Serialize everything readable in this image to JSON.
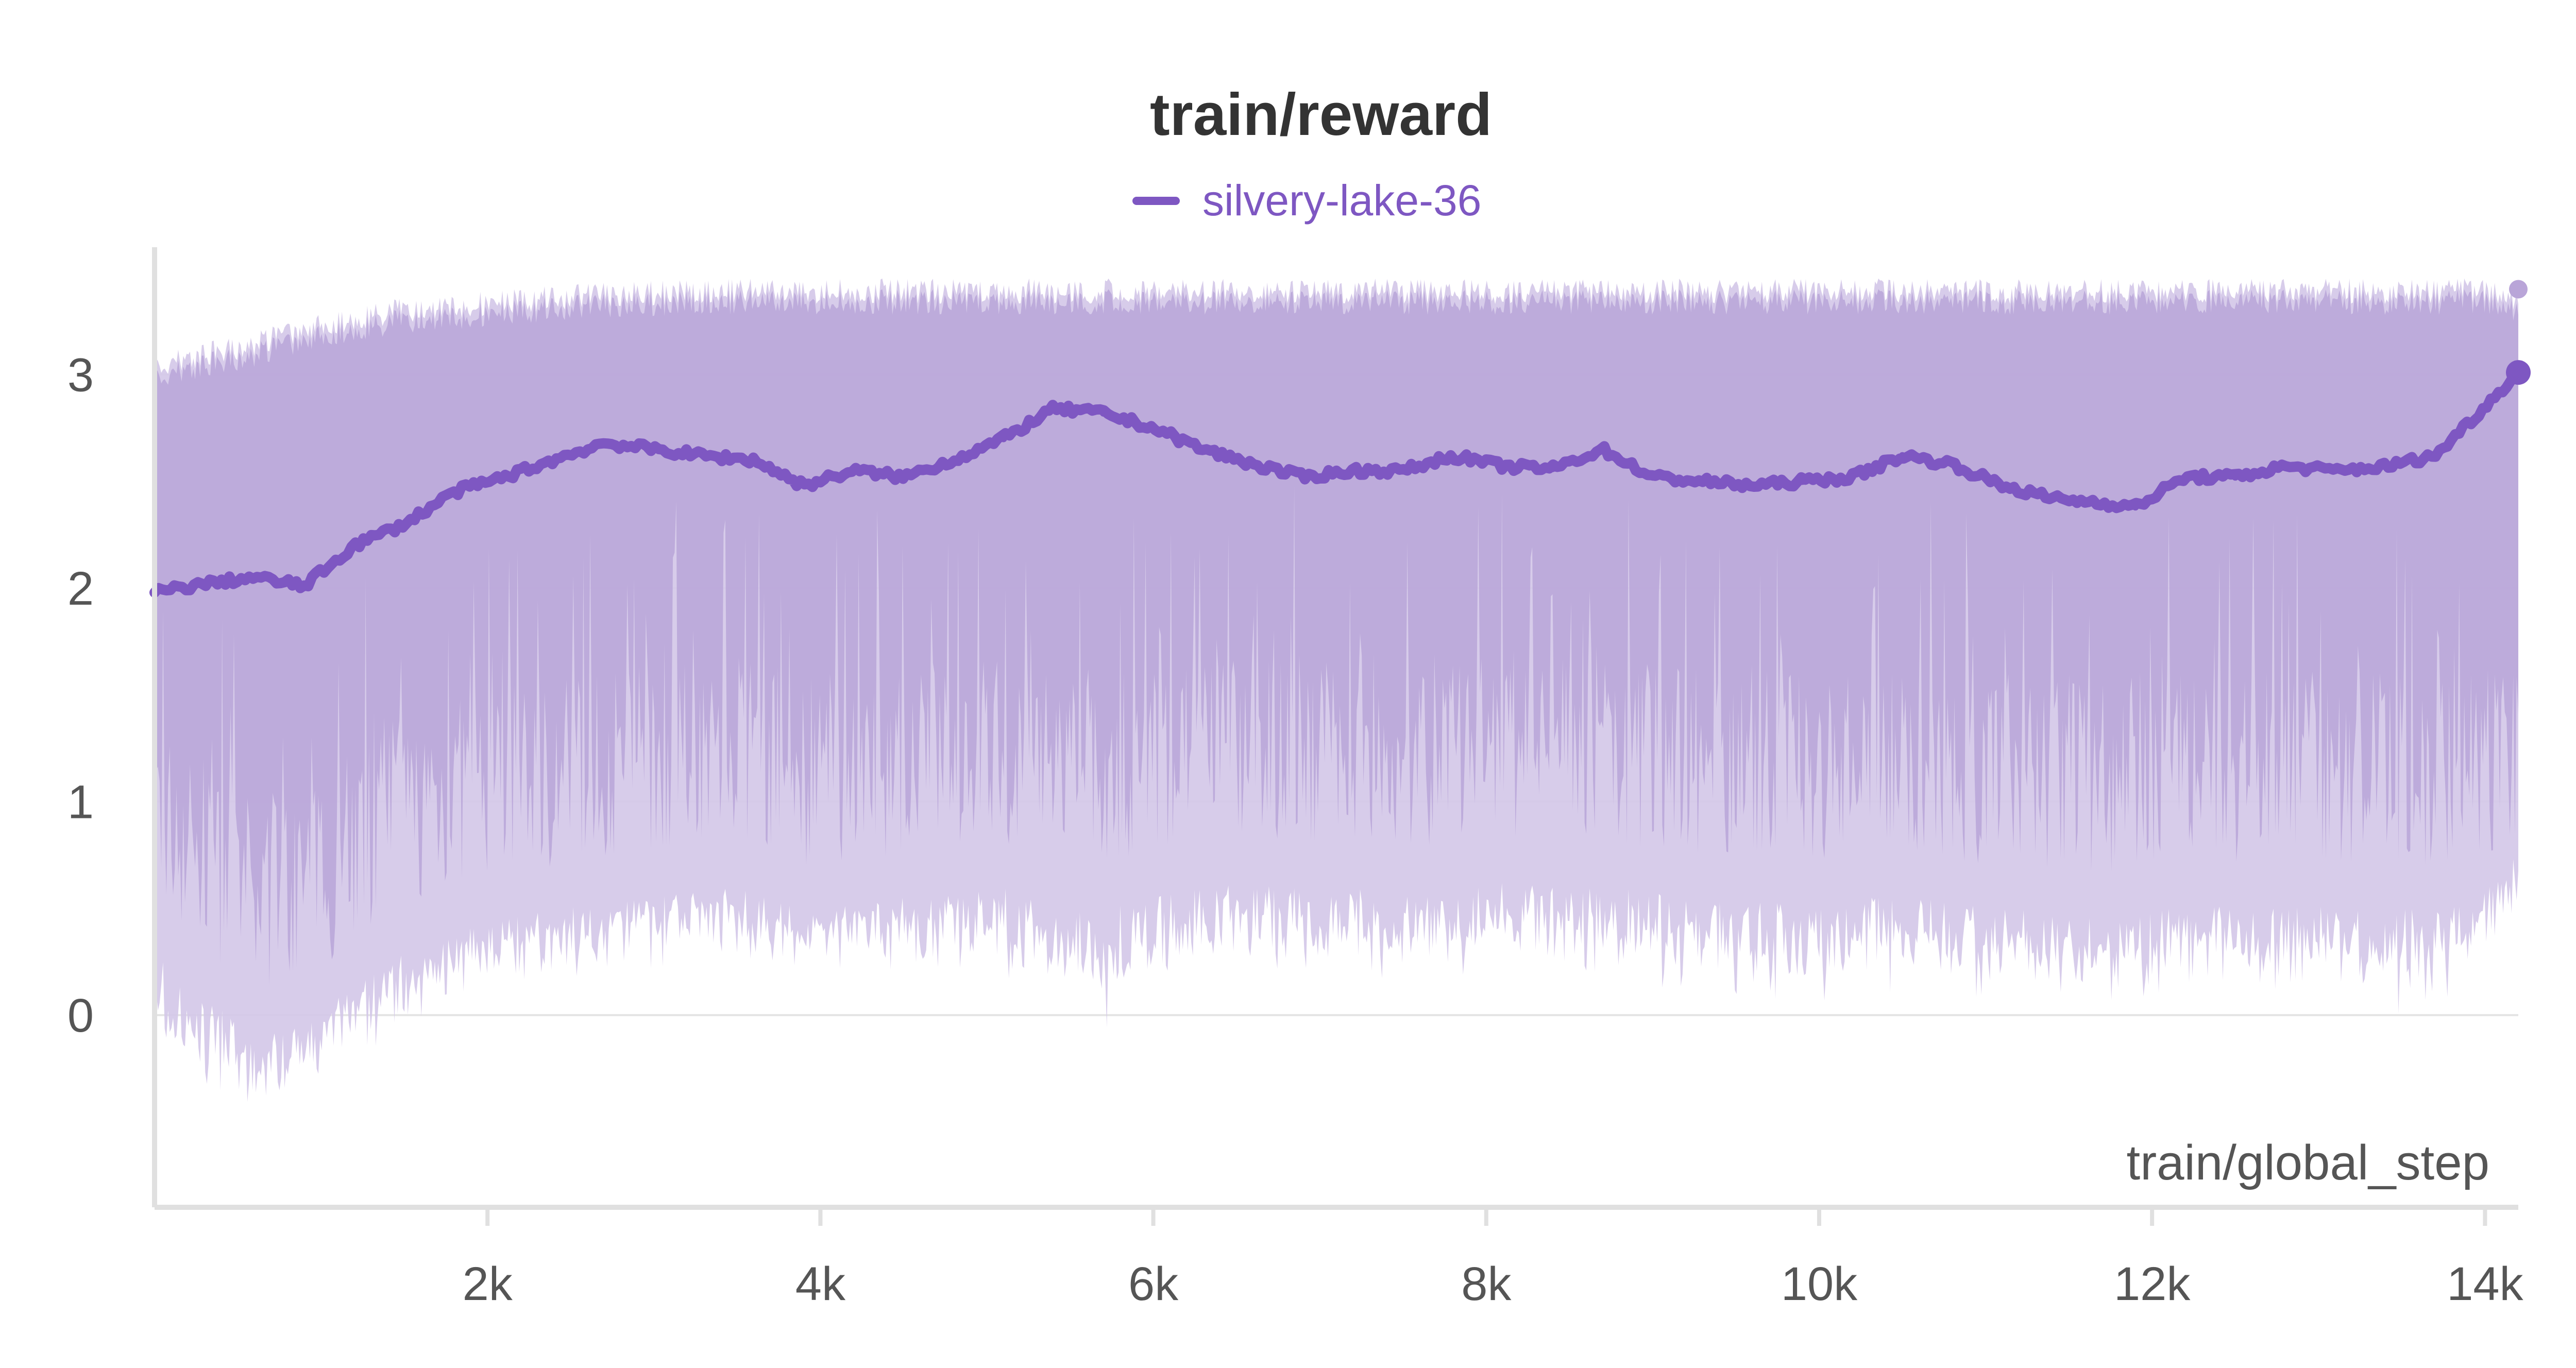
{
  "colors": {
    "series": "#7e57c2",
    "band_dark": "#b9a5d8",
    "band_light": "#d3c7e8",
    "grid": "#e4e4e4",
    "axis": "#e0e0e0",
    "text": "#555555",
    "title": "#333333"
  },
  "chart_data": {
    "type": "line",
    "title": "train/reward",
    "xlabel": "train/global_step",
    "ylabel": "",
    "xlim": [
      0,
      14200
    ],
    "ylim": [
      -0.9,
      3.5
    ],
    "x_ticks": [
      2000,
      4000,
      6000,
      8000,
      10000,
      12000,
      14000
    ],
    "x_tick_labels": [
      "2k",
      "4k",
      "6k",
      "8k",
      "10k",
      "12k",
      "14k"
    ],
    "y_ticks": [
      0,
      1,
      2,
      3
    ],
    "y_tick_labels": [
      "0",
      "1",
      "2",
      "3"
    ],
    "grid": true,
    "legend_position": "top-center",
    "series": [
      {
        "name": "silvery-lake-36",
        "x": [
          0,
          300,
          600,
          900,
          1200,
          1500,
          1800,
          2100,
          2400,
          2700,
          3000,
          3300,
          3600,
          3900,
          4200,
          4500,
          4800,
          5100,
          5400,
          5700,
          6000,
          6300,
          6600,
          6900,
          7200,
          7500,
          7800,
          8100,
          8400,
          8700,
          9000,
          9300,
          9600,
          9900,
          10200,
          10500,
          10800,
          11100,
          11400,
          11700,
          11900,
          12200,
          12500,
          12800,
          13100,
          13400,
          13700,
          14000,
          14200
        ],
        "values": [
          1.98,
          2.02,
          2.05,
          2.01,
          2.2,
          2.3,
          2.45,
          2.52,
          2.6,
          2.68,
          2.65,
          2.62,
          2.6,
          2.48,
          2.55,
          2.52,
          2.6,
          2.7,
          2.84,
          2.82,
          2.75,
          2.65,
          2.58,
          2.52,
          2.55,
          2.55,
          2.62,
          2.57,
          2.56,
          2.65,
          2.52,
          2.5,
          2.48,
          2.5,
          2.52,
          2.62,
          2.58,
          2.48,
          2.42,
          2.4,
          2.38,
          2.52,
          2.52,
          2.57,
          2.55,
          2.57,
          2.62,
          2.85,
          3.01
        ],
        "band_upper": [
          3.1,
          3.15,
          3.2,
          3.28,
          3.32,
          3.36,
          3.38,
          3.4,
          3.42,
          3.43,
          3.44,
          3.45,
          3.45,
          3.45,
          3.45,
          3.45,
          3.45,
          3.45,
          3.45,
          3.45,
          3.45,
          3.45,
          3.45,
          3.45,
          3.45,
          3.45,
          3.45,
          3.45,
          3.45,
          3.45,
          3.45,
          3.45,
          3.45,
          3.45,
          3.45,
          3.45,
          3.45,
          3.45,
          3.45,
          3.45,
          3.45,
          3.45,
          3.45,
          3.45,
          3.45,
          3.45,
          3.45,
          3.45,
          3.4
        ],
        "band_lower": [
          0.5,
          0.3,
          0.1,
          0.15,
          0.35,
          0.5,
          0.6,
          0.65,
          0.7,
          0.72,
          0.75,
          0.8,
          0.78,
          0.7,
          0.72,
          0.75,
          0.78,
          0.8,
          0.72,
          0.7,
          0.75,
          0.8,
          0.82,
          0.8,
          0.8,
          0.78,
          0.8,
          0.82,
          0.8,
          0.8,
          0.78,
          0.75,
          0.75,
          0.72,
          0.75,
          0.78,
          0.72,
          0.7,
          0.68,
          0.65,
          0.7,
          0.72,
          0.72,
          0.7,
          0.72,
          0.7,
          0.7,
          0.75,
          0.8
        ],
        "band_min": [
          -0.3,
          -0.5,
          -0.5,
          -0.35,
          -0.2,
          -0.1,
          0.0,
          0.1,
          0.15,
          0.2,
          0.22,
          0.25,
          0.2,
          0.15,
          0.2,
          0.2,
          0.15,
          0.1,
          0.0,
          -0.1,
          0.05,
          0.1,
          0.12,
          0.15,
          0.12,
          0.1,
          0.15,
          0.18,
          0.15,
          0.1,
          0.12,
          0.1,
          0.05,
          0.0,
          0.05,
          0.1,
          0.08,
          0.05,
          0.0,
          0.02,
          0.05,
          0.1,
          0.08,
          0.05,
          0.08,
          0.0,
          -0.1,
          0.3,
          0.5
        ]
      }
    ]
  }
}
